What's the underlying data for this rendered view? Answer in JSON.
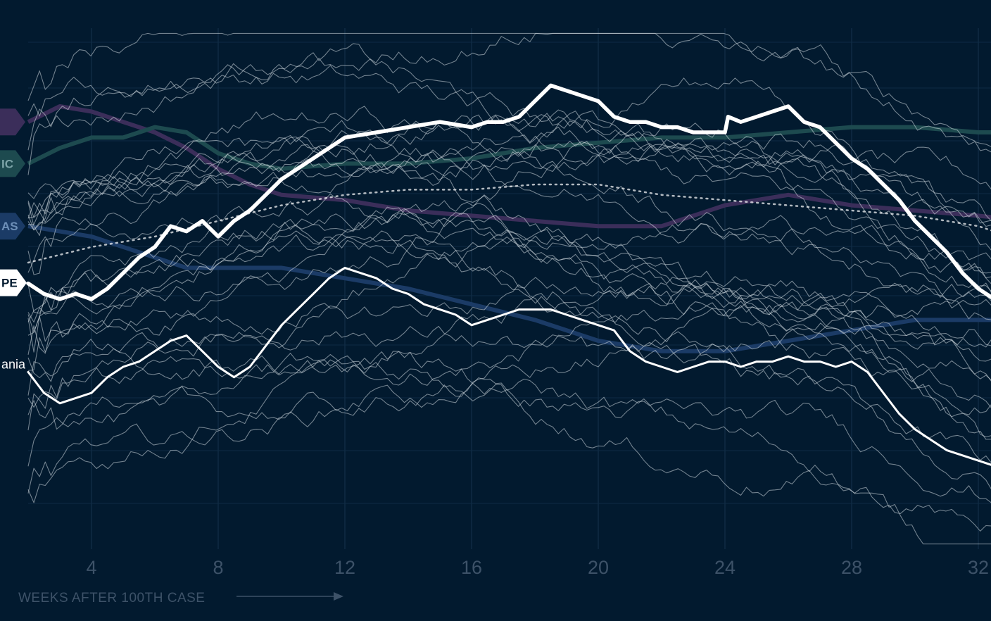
{
  "chart_data": {
    "type": "line",
    "xlabel": "WEEKS AFTER 100TH CASE",
    "x_ticks": [
      4,
      8,
      12,
      16,
      20,
      24,
      28,
      32
    ],
    "xlim": [
      2,
      33.5
    ],
    "ylim": [
      0,
      100
    ],
    "grid": true,
    "colors": {
      "background": "#021a2f",
      "grid": "#0f2b44",
      "tick": "#3d5268",
      "thin_lines": "#cfd8df",
      "highlight": "#ffffff",
      "purple": "#3b2e5a",
      "teal": "#1d4a4f",
      "blue": "#1b3b66"
    },
    "highlight_series": [
      {
        "label": "PE",
        "style": "thick-white",
        "x": [
          2,
          2.5,
          3,
          3.5,
          4,
          4.5,
          5,
          5.5,
          6,
          6.5,
          7,
          7.5,
          8,
          8.5,
          9,
          9.5,
          10,
          10.5,
          11,
          11.5,
          12,
          13,
          14,
          15,
          16,
          16.5,
          17,
          17.5,
          18,
          18.5,
          19,
          19.5,
          20,
          20.5,
          21,
          21.5,
          22,
          22.5,
          23,
          23.5,
          24,
          24.1,
          24.5,
          25,
          25.5,
          26,
          26.5,
          27,
          27.5,
          28,
          28.5,
          29,
          29.5,
          30,
          30.5,
          31,
          31.5,
          32,
          32.5,
          33
        ],
        "y": [
          51,
          49,
          48,
          49,
          48,
          50,
          53,
          56,
          58,
          62,
          61,
          63,
          60,
          63,
          65,
          68,
          71,
          73,
          75,
          77,
          79,
          80,
          81,
          82,
          81,
          82,
          82,
          83,
          86,
          89,
          88,
          87,
          86,
          83,
          82,
          82,
          81,
          81,
          80,
          80,
          80,
          83,
          82,
          83,
          84,
          85,
          82,
          81,
          78,
          75,
          73,
          70,
          67,
          63,
          60,
          57,
          53,
          50,
          48,
          46
        ]
      },
      {
        "label": "ania",
        "style": "medium-white",
        "x": [
          2,
          2.5,
          3,
          3.5,
          4,
          4.5,
          5,
          5.5,
          6,
          6.5,
          7,
          7.5,
          8,
          8.5,
          9,
          9.5,
          10,
          10.5,
          11,
          11.5,
          12,
          12.5,
          13,
          13.5,
          14,
          14.5,
          15,
          15.5,
          16,
          16.5,
          17,
          17.5,
          18,
          18.5,
          19,
          19.5,
          20,
          20.5,
          21,
          21.5,
          22,
          22.5,
          23,
          23.5,
          24,
          24.5,
          25,
          25.5,
          26,
          26.5,
          27,
          27.5,
          28,
          28.5,
          29,
          29.5,
          30,
          30.5,
          31,
          31.5,
          32,
          32.5,
          33
        ],
        "y": [
          34,
          30,
          28,
          29,
          30,
          33,
          35,
          36,
          38,
          40,
          41,
          38,
          35,
          33,
          35,
          39,
          43,
          46,
          49,
          52,
          54,
          53,
          52,
          50,
          49,
          47,
          46,
          45,
          43,
          44,
          45,
          46,
          46,
          46,
          45,
          44,
          43,
          42,
          38,
          36,
          35,
          34,
          35,
          36,
          36,
          35,
          36,
          36,
          37,
          36,
          36,
          35,
          36,
          34,
          30,
          26,
          23,
          21,
          19,
          18,
          17,
          16,
          15
        ]
      },
      {
        "label": "",
        "style": "dotted",
        "x": [
          2,
          4,
          6,
          8,
          10,
          12,
          14,
          16,
          18,
          20,
          22,
          24,
          26,
          28,
          30,
          32,
          33
        ],
        "y": [
          55,
          58,
          60,
          63,
          66,
          68,
          69,
          69,
          70,
          70,
          68,
          67,
          66,
          65,
          64,
          62,
          60
        ]
      }
    ],
    "group_series": [
      {
        "label": "",
        "color": "#3b2e5a",
        "x": [
          2,
          3,
          4,
          5,
          6,
          7,
          8,
          9,
          10,
          12,
          14,
          16,
          18,
          20,
          22,
          24,
          26,
          28,
          30,
          32,
          33.5
        ],
        "y": [
          82,
          85,
          84,
          82,
          80,
          77,
          73,
          70,
          68,
          67,
          65,
          64,
          63,
          62,
          62,
          66,
          68,
          66,
          65,
          64,
          63
        ]
      },
      {
        "label": "IC",
        "color": "#1d4a4f",
        "x": [
          2,
          3,
          4,
          5,
          6,
          7,
          8,
          9,
          10,
          12,
          14,
          16,
          18,
          20,
          22,
          24,
          26,
          28,
          30,
          32,
          33.5
        ],
        "y": [
          74,
          77,
          79,
          79,
          81,
          80,
          76,
          74,
          73,
          74,
          74,
          75,
          77,
          78,
          79,
          79,
          80,
          81,
          81,
          80,
          80
        ]
      },
      {
        "label": "AS",
        "color": "#1b3b66",
        "x": [
          2,
          3,
          4,
          5,
          6,
          7,
          8,
          9,
          10,
          12,
          14,
          16,
          18,
          20,
          22,
          24,
          26,
          28,
          30,
          32,
          33.5
        ],
        "y": [
          62,
          61,
          60,
          58,
          56,
          54,
          54,
          54,
          54,
          52,
          50,
          47,
          44,
          40,
          38,
          38,
          40,
          42,
          44,
          44,
          44
        ]
      }
    ],
    "background_series_count": 30
  }
}
